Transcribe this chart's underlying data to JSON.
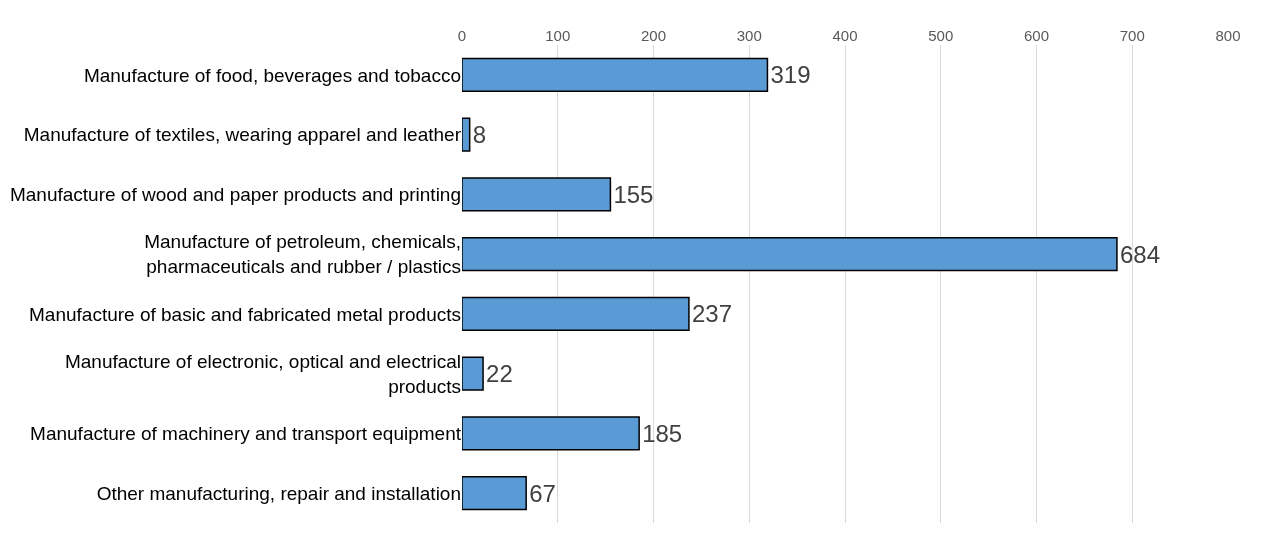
{
  "chart_data": {
    "type": "bar",
    "orientation": "horizontal",
    "categories": [
      "Manufacture of food, beverages and tobacco",
      "Manufacture of textiles, wearing apparel and leather",
      "Manufacture of wood and paper products and printing",
      "Manufacture of petroleum, chemicals, pharmaceuticals and rubber / plastics",
      "Manufacture of basic and fabricated metal products",
      "Manufacture of electronic, optical and electrical products",
      "Manufacture of machinery and transport equipment",
      "Other manufacturing, repair and installation"
    ],
    "values": [
      319,
      8,
      155,
      684,
      237,
      22,
      185,
      67
    ],
    "color": "#5b9bd5",
    "xlim": [
      0,
      800
    ],
    "xticks": [
      0,
      100,
      200,
      300,
      400,
      500,
      600,
      700,
      800
    ],
    "grid": "x",
    "data_labels": true
  }
}
